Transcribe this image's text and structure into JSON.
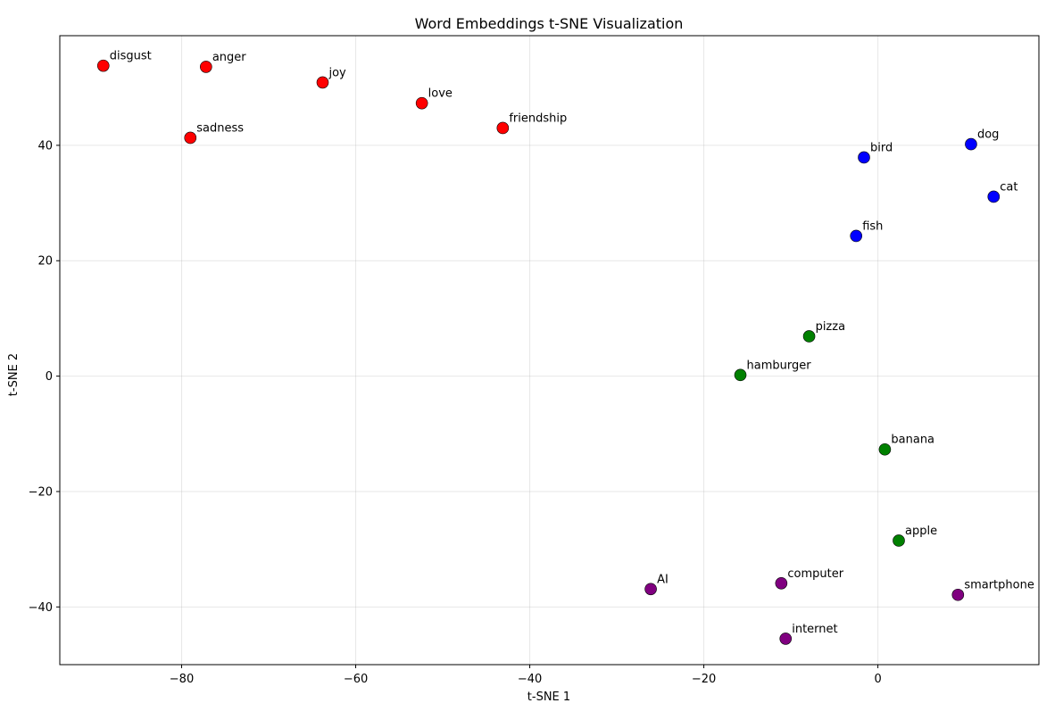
{
  "chart_data": {
    "type": "scatter",
    "title": "Word Embeddings t-SNE Visualization",
    "xlabel": "t-SNE 1",
    "ylabel": "t-SNE 2",
    "xlim": [
      -94,
      18.5
    ],
    "ylim": [
      -50,
      59
    ],
    "x_ticks": [
      -80,
      -60,
      -40,
      -20,
      0
    ],
    "y_ticks": [
      -40,
      -20,
      0,
      20,
      40
    ],
    "grid": true,
    "legend": "none",
    "series": [
      {
        "color": "#ff0000",
        "points": [
          {
            "label": "disgust",
            "x": -89.0,
            "y": 53.8
          },
          {
            "label": "anger",
            "x": -77.2,
            "y": 53.6
          },
          {
            "label": "joy",
            "x": -63.8,
            "y": 50.9
          },
          {
            "label": "love",
            "x": -52.4,
            "y": 47.3
          },
          {
            "label": "sadness",
            "x": -79.0,
            "y": 41.3
          },
          {
            "label": "friendship",
            "x": -43.1,
            "y": 43.0
          }
        ]
      },
      {
        "color": "#0000ff",
        "points": [
          {
            "label": "bird",
            "x": -1.6,
            "y": 37.9
          },
          {
            "label": "dog",
            "x": 10.7,
            "y": 40.2
          },
          {
            "label": "cat",
            "x": 13.3,
            "y": 31.1
          },
          {
            "label": "fish",
            "x": -2.5,
            "y": 24.3
          }
        ]
      },
      {
        "color": "#008000",
        "points": [
          {
            "label": "pizza",
            "x": -7.9,
            "y": 6.9
          },
          {
            "label": "hamburger",
            "x": -15.8,
            "y": 0.2
          },
          {
            "label": "banana",
            "x": 0.8,
            "y": -12.7
          },
          {
            "label": "apple",
            "x": 2.4,
            "y": -28.5
          }
        ]
      },
      {
        "color": "#800080",
        "points": [
          {
            "label": "AI",
            "x": -26.1,
            "y": -36.9
          },
          {
            "label": "computer",
            "x": -11.1,
            "y": -35.9
          },
          {
            "label": "smartphone",
            "x": 9.2,
            "y": -37.9
          },
          {
            "label": "internet",
            "x": -10.6,
            "y": -45.5
          }
        ]
      }
    ]
  }
}
